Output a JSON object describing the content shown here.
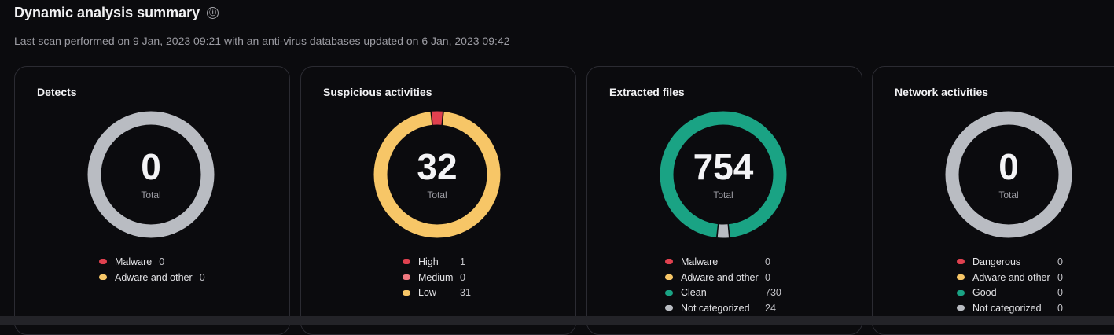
{
  "header": {
    "title": "Dynamic analysis summary",
    "info_icon": "ⓘ",
    "subtitle": "Last scan performed on 9 Jan, 2023 09:21 with an anti-virus databases updated on 6 Jan, 2023 09:42"
  },
  "colors": {
    "red": "#e0414f",
    "pink": "#f0787f",
    "yellow": "#f7c667",
    "green": "#1aa384",
    "gray": "#b9bcc2"
  },
  "cards": [
    {
      "title": "Detects",
      "total": "0",
      "total_label": "Total",
      "legend": [
        {
          "label": "Malware",
          "count": "0",
          "color": "red"
        },
        {
          "label": "Adware and other",
          "count": "0",
          "color": "yellow"
        }
      ]
    },
    {
      "title": "Suspicious activities",
      "total": "32",
      "total_label": "Total",
      "legend": [
        {
          "label": "High",
          "count": "1",
          "color": "red"
        },
        {
          "label": "Medium",
          "count": "0",
          "color": "pink"
        },
        {
          "label": "Low",
          "count": "31",
          "color": "yellow"
        }
      ]
    },
    {
      "title": "Extracted files",
      "total": "754",
      "total_label": "Total",
      "legend": [
        {
          "label": "Malware",
          "count": "0",
          "color": "red"
        },
        {
          "label": "Adware and other",
          "count": "0",
          "color": "yellow"
        },
        {
          "label": "Clean",
          "count": "730",
          "color": "green"
        },
        {
          "label": "Not categorized",
          "count": "24",
          "color": "gray"
        }
      ]
    },
    {
      "title": "Network activities",
      "total": "0",
      "total_label": "Total",
      "legend": [
        {
          "label": "Dangerous",
          "count": "0",
          "color": "red"
        },
        {
          "label": "Adware and other",
          "count": "0",
          "color": "yellow"
        },
        {
          "label": "Good",
          "count": "0",
          "color": "green"
        },
        {
          "label": "Not categorized",
          "count": "0",
          "color": "gray"
        }
      ]
    }
  ]
}
